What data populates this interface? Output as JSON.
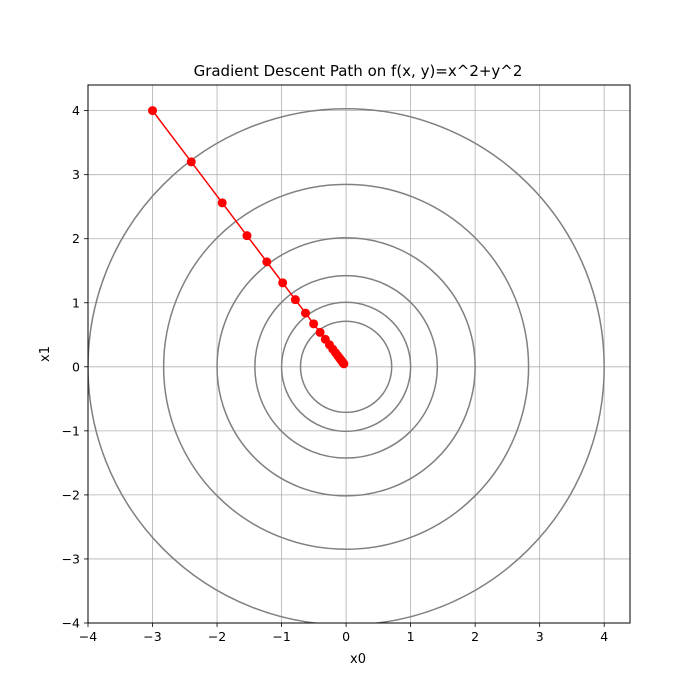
{
  "chart_data": {
    "type": "line",
    "title": "Gradient Descent Path on f(x, y)=x^2+y^2",
    "xlabel": "x0",
    "ylabel": "x1",
    "xlim": [
      -4,
      4.4
    ],
    "ylim": [
      -4,
      4.4
    ],
    "grid": true,
    "xticks": [
      -4,
      -3,
      -2,
      -1,
      0,
      1,
      2,
      3,
      4
    ],
    "yticks": [
      -4,
      -3,
      -2,
      -1,
      0,
      1,
      2,
      3,
      4
    ],
    "xtick_labels": [
      "−4",
      "−3",
      "−2",
      "−1",
      "0",
      "1",
      "2",
      "3",
      "4"
    ],
    "ytick_labels": [
      "−4",
      "−3",
      "−2",
      "−1",
      "0",
      "1",
      "2",
      "3",
      "4"
    ],
    "contours": {
      "color": "#808080",
      "radii": [
        0.707,
        1.0,
        1.414,
        2.0,
        2.828,
        4.0
      ],
      "levels": [
        0.5,
        1,
        2,
        4,
        8,
        16
      ]
    },
    "series": [
      {
        "color": "#ff0000",
        "marker": "circle",
        "x": [
          -3.0,
          -2.4,
          -1.92,
          -1.536,
          -1.2288,
          -0.983,
          -0.7864,
          -0.6291,
          -0.5033,
          -0.4027,
          -0.3221,
          -0.2577,
          -0.2062,
          -0.1649,
          -0.1319,
          -0.1056,
          -0.0844,
          -0.0676,
          -0.054,
          -0.0432,
          -0.0346
        ],
        "y": [
          4.0,
          3.2,
          2.56,
          2.048,
          1.6384,
          1.3107,
          1.0486,
          0.8389,
          0.6711,
          0.5369,
          0.4295,
          0.3436,
          0.2749,
          0.2199,
          0.1759,
          0.1407,
          0.1126,
          0.0901,
          0.072,
          0.0576,
          0.0461
        ]
      }
    ]
  }
}
